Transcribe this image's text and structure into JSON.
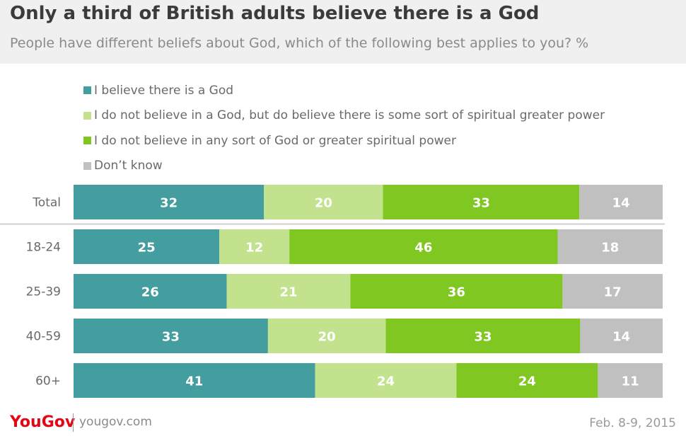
{
  "chart_data": {
    "type": "bar",
    "orientation": "horizontal",
    "stacked": true,
    "title": "Only a third of British adults believe there is a God",
    "subtitle": "People have different beliefs about God, which of the following best applies to you? %",
    "categories": [
      "Total",
      "18-24",
      "25-39",
      "40-59",
      "60+"
    ],
    "series": [
      {
        "name": "I believe there is a God",
        "color": "#449e9f",
        "values": [
          32,
          25,
          26,
          33,
          41
        ]
      },
      {
        "name": "I do not believe in a God, but do believe there is some sort of spiritual greater power",
        "color": "#c3e28e",
        "values": [
          20,
          12,
          21,
          20,
          24
        ]
      },
      {
        "name": "I do not believe in any sort of God or greater spiritual power",
        "color": "#80c722",
        "values": [
          33,
          46,
          36,
          33,
          24
        ]
      },
      {
        "name": "Don’t know",
        "color": "#c0c0c0",
        "values": [
          14,
          18,
          17,
          14,
          11
        ]
      }
    ],
    "xlim": [
      0,
      100
    ],
    "grid": false,
    "legend": "top"
  },
  "footer": {
    "brand": "YouGov",
    "site": "yougov.com",
    "date": "Feb. 8-9, 2015"
  }
}
